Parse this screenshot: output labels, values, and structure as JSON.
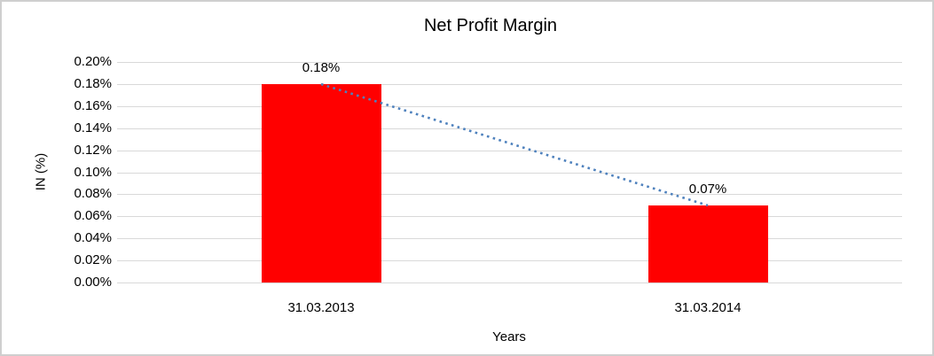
{
  "chart_data": {
    "type": "bar",
    "title": "Net Profit Margin",
    "xlabel": "Years",
    "ylabel": "IN (%)",
    "categories": [
      "31.03.2013",
      "31.03.2014"
    ],
    "values": [
      0.18,
      0.07
    ],
    "data_labels": [
      "0.18%",
      "0.07%"
    ],
    "y_ticks": [
      "0.20%",
      "0.18%",
      "0.16%",
      "0.14%",
      "0.12%",
      "0.10%",
      "0.08%",
      "0.06%",
      "0.04%",
      "0.02%",
      "0.00%"
    ],
    "ylim": [
      0,
      0.2
    ],
    "unit": "%",
    "grid": true,
    "legend": "none",
    "bar_color": "#FF0000",
    "trendline": {
      "style": "dotted",
      "color": "#4E81BD"
    }
  },
  "colors": {
    "gridline": "#D9D9D9",
    "frame_border": "#CFCFCF",
    "text": "#000000"
  }
}
